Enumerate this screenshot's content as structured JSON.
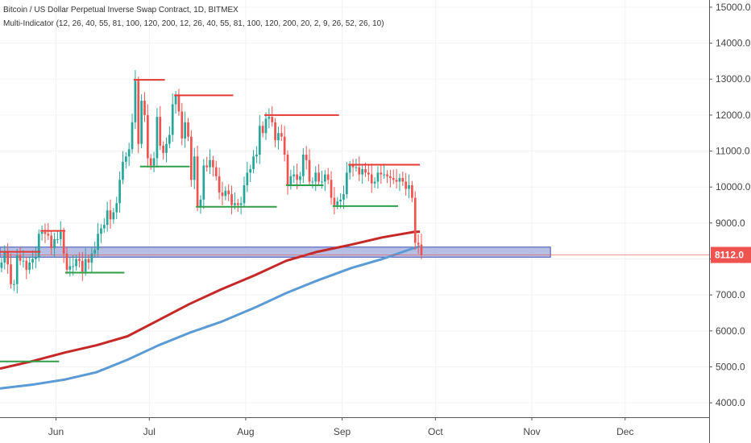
{
  "header": {
    "symbol_title": "Bitcoin / US Dollar Perpetual Inverse Swap Contract, 1D, BITMEX",
    "indicator": "Multi-Indicator (12, 26, 40, 55, 81, 100, 120, 200, 12, 26, 40, 55, 81, 100, 120, 200, 20, 2, 9, 26, 52, 26, 10)"
  },
  "colors": {
    "up": "#26a69a",
    "down": "#ef5350",
    "ma_red": "#c62828",
    "ma_blue": "#5b9bd5",
    "zone_fill": "#9fa8da",
    "zone_stroke": "#3f51b5",
    "resistance": "#e53935",
    "support": "#2e9e48",
    "price_label_bg": "#ef5350"
  },
  "chart_data": {
    "type": "candlestick",
    "ylim": [
      3600,
      15200
    ],
    "y_ticks": [
      4000,
      5000,
      6000,
      7000,
      8000,
      9000,
      10000,
      11000,
      12000,
      13000,
      14000,
      15000
    ],
    "y_tick_labels": [
      "4000.0",
      "5000.0",
      "6000.0",
      "7000.0",
      "8000.0",
      "9000.0",
      "10000.0",
      "11000.0",
      "12000.0",
      "13000.0",
      "14000.0",
      "15000.0"
    ],
    "x_start": "2019-05-14",
    "x_end": "2019-12-28",
    "x_ticks": [
      {
        "date": "2019-06-01",
        "label": "Jun"
      },
      {
        "date": "2019-07-01",
        "label": "Jul"
      },
      {
        "date": "2019-08-01",
        "label": "Aug"
      },
      {
        "date": "2019-09-01",
        "label": "Sep"
      },
      {
        "date": "2019-10-01",
        "label": "Oct"
      },
      {
        "date": "2019-11-01",
        "label": "Nov"
      },
      {
        "date": "2019-12-01",
        "label": "Dec"
      }
    ],
    "last_price": 8112.0,
    "last_price_label": "8112.0",
    "closes": [
      {
        "date": "2019-05-14",
        "close": 7900
      },
      {
        "date": "2019-05-15",
        "close": 8200
      },
      {
        "date": "2019-05-16",
        "close": 7850
      },
      {
        "date": "2019-05-17",
        "close": 7300
      },
      {
        "date": "2019-05-18",
        "close": 7300
      },
      {
        "date": "2019-05-19",
        "close": 8100
      },
      {
        "date": "2019-05-20",
        "close": 7950
      },
      {
        "date": "2019-05-21",
        "close": 7950
      },
      {
        "date": "2019-05-22",
        "close": 7700
      },
      {
        "date": "2019-05-23",
        "close": 7900
      },
      {
        "date": "2019-05-24",
        "close": 8000
      },
      {
        "date": "2019-05-25",
        "close": 8050
      },
      {
        "date": "2019-05-26",
        "close": 8700
      },
      {
        "date": "2019-05-27",
        "close": 8750
      },
      {
        "date": "2019-05-28",
        "close": 8700
      },
      {
        "date": "2019-05-29",
        "close": 8650
      },
      {
        "date": "2019-05-30",
        "close": 8300
      },
      {
        "date": "2019-05-31",
        "close": 8550
      },
      {
        "date": "2019-06-01",
        "close": 8550
      },
      {
        "date": "2019-06-02",
        "close": 8750
      },
      {
        "date": "2019-06-03",
        "close": 8150
      },
      {
        "date": "2019-06-04",
        "close": 7700
      },
      {
        "date": "2019-06-05",
        "close": 7800
      },
      {
        "date": "2019-06-06",
        "close": 7800
      },
      {
        "date": "2019-06-07",
        "close": 8000
      },
      {
        "date": "2019-06-08",
        "close": 7950
      },
      {
        "date": "2019-06-09",
        "close": 7650
      },
      {
        "date": "2019-06-10",
        "close": 8000
      },
      {
        "date": "2019-06-11",
        "close": 7900
      },
      {
        "date": "2019-06-12",
        "close": 8150
      },
      {
        "date": "2019-06-13",
        "close": 8250
      },
      {
        "date": "2019-06-14",
        "close": 8700
      },
      {
        "date": "2019-06-15",
        "close": 8850
      },
      {
        "date": "2019-06-16",
        "close": 8950
      },
      {
        "date": "2019-06-17",
        "close": 9350
      },
      {
        "date": "2019-06-18",
        "close": 9100
      },
      {
        "date": "2019-06-19",
        "close": 9300
      },
      {
        "date": "2019-06-20",
        "close": 9550
      },
      {
        "date": "2019-06-21",
        "close": 10200
      },
      {
        "date": "2019-06-22",
        "close": 10700
      },
      {
        "date": "2019-06-23",
        "close": 10850
      },
      {
        "date": "2019-06-24",
        "close": 11050
      },
      {
        "date": "2019-06-25",
        "close": 11800
      },
      {
        "date": "2019-06-26",
        "close": 12950
      },
      {
        "date": "2019-06-27",
        "close": 11200
      },
      {
        "date": "2019-06-28",
        "close": 12400
      },
      {
        "date": "2019-06-29",
        "close": 12000
      },
      {
        "date": "2019-06-30",
        "close": 10800
      },
      {
        "date": "2019-07-01",
        "close": 10600
      },
      {
        "date": "2019-07-02",
        "close": 10800
      },
      {
        "date": "2019-07-03",
        "close": 11950
      },
      {
        "date": "2019-07-04",
        "close": 11150
      },
      {
        "date": "2019-07-05",
        "close": 10950
      },
      {
        "date": "2019-07-06",
        "close": 11200
      },
      {
        "date": "2019-07-07",
        "close": 11450
      },
      {
        "date": "2019-07-08",
        "close": 12300
      },
      {
        "date": "2019-07-09",
        "close": 12550
      },
      {
        "date": "2019-07-10",
        "close": 12100
      },
      {
        "date": "2019-07-11",
        "close": 11350
      },
      {
        "date": "2019-07-12",
        "close": 11800
      },
      {
        "date": "2019-07-13",
        "close": 11400
      },
      {
        "date": "2019-07-14",
        "close": 10200
      },
      {
        "date": "2019-07-15",
        "close": 10850
      },
      {
        "date": "2019-07-16",
        "close": 9450
      },
      {
        "date": "2019-07-17",
        "close": 9650
      },
      {
        "date": "2019-07-18",
        "close": 10600
      },
      {
        "date": "2019-07-19",
        "close": 10550
      },
      {
        "date": "2019-07-20",
        "close": 10750
      },
      {
        "date": "2019-07-21",
        "close": 10550
      },
      {
        "date": "2019-07-22",
        "close": 10300
      },
      {
        "date": "2019-07-23",
        "close": 9850
      },
      {
        "date": "2019-07-24",
        "close": 9750
      },
      {
        "date": "2019-07-25",
        "close": 9900
      },
      {
        "date": "2019-07-26",
        "close": 9800
      },
      {
        "date": "2019-07-27",
        "close": 9500
      },
      {
        "date": "2019-07-28",
        "close": 9550
      },
      {
        "date": "2019-07-29",
        "close": 9500
      },
      {
        "date": "2019-07-30",
        "close": 9550
      },
      {
        "date": "2019-07-31",
        "close": 10050
      },
      {
        "date": "2019-08-01",
        "close": 10400
      },
      {
        "date": "2019-08-02",
        "close": 10500
      },
      {
        "date": "2019-08-03",
        "close": 10850
      },
      {
        "date": "2019-08-04",
        "close": 10900
      },
      {
        "date": "2019-08-05",
        "close": 11700
      },
      {
        "date": "2019-08-06",
        "close": 11500
      },
      {
        "date": "2019-08-07",
        "close": 11900
      },
      {
        "date": "2019-08-08",
        "close": 11950
      },
      {
        "date": "2019-08-09",
        "close": 11800
      },
      {
        "date": "2019-08-10",
        "close": 11300
      },
      {
        "date": "2019-08-11",
        "close": 11500
      },
      {
        "date": "2019-08-12",
        "close": 11400
      },
      {
        "date": "2019-08-13",
        "close": 10900
      },
      {
        "date": "2019-08-14",
        "close": 10050
      },
      {
        "date": "2019-08-15",
        "close": 10300
      },
      {
        "date": "2019-08-16",
        "close": 10350
      },
      {
        "date": "2019-08-17",
        "close": 10200
      },
      {
        "date": "2019-08-18",
        "close": 10300
      },
      {
        "date": "2019-08-19",
        "close": 10900
      },
      {
        "date": "2019-08-20",
        "close": 10750
      },
      {
        "date": "2019-08-21",
        "close": 10150
      },
      {
        "date": "2019-08-22",
        "close": 10150
      },
      {
        "date": "2019-08-23",
        "close": 10400
      },
      {
        "date": "2019-08-24",
        "close": 10150
      },
      {
        "date": "2019-08-25",
        "close": 10150
      },
      {
        "date": "2019-08-26",
        "close": 10350
      },
      {
        "date": "2019-08-27",
        "close": 10200
      },
      {
        "date": "2019-08-28",
        "close": 9700
      },
      {
        "date": "2019-08-29",
        "close": 9500
      },
      {
        "date": "2019-08-30",
        "close": 9600
      },
      {
        "date": "2019-08-31",
        "close": 9650
      },
      {
        "date": "2019-09-01",
        "close": 9800
      },
      {
        "date": "2019-09-02",
        "close": 10400
      },
      {
        "date": "2019-09-03",
        "close": 10600
      },
      {
        "date": "2019-09-04",
        "close": 10550
      },
      {
        "date": "2019-09-05",
        "close": 10550
      },
      {
        "date": "2019-09-06",
        "close": 10350
      },
      {
        "date": "2019-09-07",
        "close": 10500
      },
      {
        "date": "2019-09-08",
        "close": 10400
      },
      {
        "date": "2019-09-09",
        "close": 10350
      },
      {
        "date": "2019-09-10",
        "close": 10100
      },
      {
        "date": "2019-09-11",
        "close": 10150
      },
      {
        "date": "2019-09-12",
        "close": 10400
      },
      {
        "date": "2019-09-13",
        "close": 10350
      },
      {
        "date": "2019-09-14",
        "close": 10350
      },
      {
        "date": "2019-09-15",
        "close": 10300
      },
      {
        "date": "2019-09-16",
        "close": 10250
      },
      {
        "date": "2019-09-17",
        "close": 10200
      },
      {
        "date": "2019-09-18",
        "close": 10150
      },
      {
        "date": "2019-09-19",
        "close": 10250
      },
      {
        "date": "2019-09-20",
        "close": 10150
      },
      {
        "date": "2019-09-21",
        "close": 9950
      },
      {
        "date": "2019-09-22",
        "close": 10050
      },
      {
        "date": "2019-09-23",
        "close": 9700
      },
      {
        "date": "2019-09-24",
        "close": 8450
      },
      {
        "date": "2019-09-25",
        "close": 8400
      },
      {
        "date": "2019-09-26",
        "close": 8112
      }
    ],
    "moving_averages": [
      {
        "color": "red",
        "points": [
          {
            "date": "2019-05-14",
            "value": 4950
          },
          {
            "date": "2019-05-24",
            "value": 5150
          },
          {
            "date": "2019-06-04",
            "value": 5400
          },
          {
            "date": "2019-06-14",
            "value": 5600
          },
          {
            "date": "2019-06-24",
            "value": 5850
          },
          {
            "date": "2019-07-04",
            "value": 6300
          },
          {
            "date": "2019-07-14",
            "value": 6750
          },
          {
            "date": "2019-07-24",
            "value": 7150
          },
          {
            "date": "2019-08-04",
            "value": 7550
          },
          {
            "date": "2019-08-14",
            "value": 7950
          },
          {
            "date": "2019-08-24",
            "value": 8200
          },
          {
            "date": "2019-09-04",
            "value": 8400
          },
          {
            "date": "2019-09-14",
            "value": 8600
          },
          {
            "date": "2019-09-24",
            "value": 8750
          },
          {
            "date": "2019-09-26",
            "value": 8760
          }
        ]
      },
      {
        "color": "blue",
        "points": [
          {
            "date": "2019-05-14",
            "value": 4400
          },
          {
            "date": "2019-05-24",
            "value": 4500
          },
          {
            "date": "2019-06-04",
            "value": 4650
          },
          {
            "date": "2019-06-14",
            "value": 4850
          },
          {
            "date": "2019-06-24",
            "value": 5200
          },
          {
            "date": "2019-07-04",
            "value": 5600
          },
          {
            "date": "2019-07-14",
            "value": 5950
          },
          {
            "date": "2019-07-24",
            "value": 6250
          },
          {
            "date": "2019-08-04",
            "value": 6650
          },
          {
            "date": "2019-08-14",
            "value": 7050
          },
          {
            "date": "2019-08-24",
            "value": 7400
          },
          {
            "date": "2019-09-04",
            "value": 7750
          },
          {
            "date": "2019-09-14",
            "value": 8000
          },
          {
            "date": "2019-09-24",
            "value": 8300
          },
          {
            "date": "2019-09-26",
            "value": 8350
          }
        ]
      }
    ],
    "zone": {
      "from": "2019-05-14",
      "to": "2019-11-07",
      "low": 8050,
      "high": 8330
    },
    "resistance_levels": [
      {
        "from": "2019-05-14",
        "to": "2019-05-27",
        "price": 8200
      },
      {
        "from": "2019-05-27",
        "to": "2019-06-04",
        "price": 8780
      },
      {
        "from": "2019-06-26",
        "to": "2019-07-06",
        "price": 12980
      },
      {
        "from": "2019-07-09",
        "to": "2019-07-28",
        "price": 12550
      },
      {
        "from": "2019-08-07",
        "to": "2019-08-31",
        "price": 12000
      },
      {
        "from": "2019-09-03",
        "to": "2019-09-26",
        "price": 10620
      }
    ],
    "support_levels": [
      {
        "from": "2019-05-14",
        "to": "2019-06-02",
        "price": 5150
      },
      {
        "from": "2019-06-04",
        "to": "2019-06-23",
        "price": 7620
      },
      {
        "from": "2019-06-28",
        "to": "2019-07-14",
        "price": 10570
      },
      {
        "from": "2019-07-16",
        "to": "2019-08-11",
        "price": 9450
      },
      {
        "from": "2019-08-14",
        "to": "2019-08-26",
        "price": 10050
      },
      {
        "from": "2019-08-29",
        "to": "2019-09-19",
        "price": 9470
      }
    ]
  }
}
